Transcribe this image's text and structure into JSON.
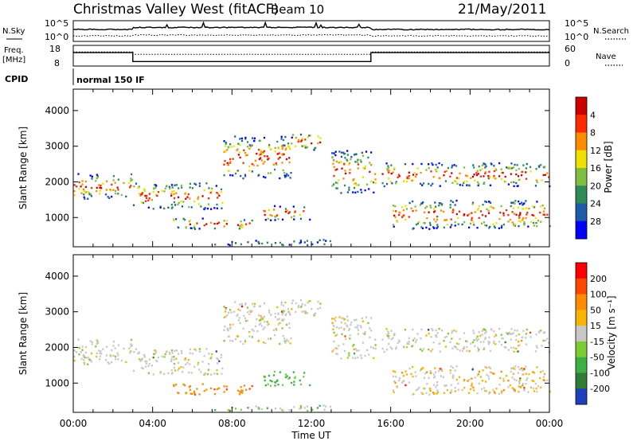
{
  "header": {
    "station": "Christmas Valley West (fitACF)",
    "beam": "Beam 10",
    "date": "21/May/2011"
  },
  "chart_data": [
    {
      "type": "line",
      "panel": "noise",
      "left_label": "N.Sky",
      "right_label": "N.Search",
      "left_ticks": [
        "10^5",
        "10^0"
      ],
      "right_ticks": [
        "10^5",
        "10^0"
      ],
      "note": "N.Sky solid, N.Search dotted (log scale)"
    },
    {
      "type": "line",
      "panel": "frequency",
      "left_label_lines": [
        "Freq.",
        "[MHz]"
      ],
      "left_ticks": [
        18,
        8
      ],
      "right_label": "Nave",
      "right_ticks": [
        60,
        0
      ],
      "freq_series": {
        "x": [
          0,
          3,
          3,
          15,
          15,
          24
        ],
        "y": [
          14.5,
          14.5,
          10.2,
          10.2,
          14.5,
          14.5
        ]
      },
      "nave_series": {
        "x": [
          0,
          3,
          3,
          15,
          15,
          24
        ],
        "y": [
          41,
          41,
          34,
          34,
          41,
          41
        ]
      }
    },
    {
      "type": "table",
      "panel": "cpid",
      "label": "CPID",
      "value": "normal 150 IF"
    },
    {
      "type": "heatmap",
      "panel": "power",
      "ylabel": "Slant Range [km]",
      "yticks": [
        1000,
        2000,
        3000,
        4000
      ],
      "ylim": [
        180,
        4600
      ],
      "colorbar_label": "Power [dB]",
      "colorbar_ticks": [
        4,
        8,
        12,
        16,
        20,
        24,
        28
      ],
      "colors": [
        "#0000ff",
        "#1e5aa8",
        "#2e8b57",
        "#7fbf3f",
        "#f0e000",
        "#ff8c00",
        "#ff2a00",
        "#cc0000"
      ]
    },
    {
      "type": "heatmap",
      "panel": "velocity",
      "ylabel": "Slant Range [km]",
      "yticks": [
        1000,
        2000,
        3000,
        4000
      ],
      "ylim": [
        180,
        4600
      ],
      "colorbar_label": "Velocity [m s⁻¹]",
      "colorbar_ticks": [
        200,
        100,
        50,
        15,
        -15,
        -50,
        -100,
        -200
      ],
      "colors": [
        "#1f3fbf",
        "#2e7d32",
        "#3cb043",
        "#7ccd34",
        "#c8c8c8",
        "#f7b500",
        "#ff8c00",
        "#ff4500",
        "#ff0000"
      ],
      "xlabel": "Time UT",
      "xticks": [
        "00:00",
        "04:00",
        "08:00",
        "12:00",
        "16:00",
        "20:00",
        "00:00"
      ]
    }
  ],
  "range_bands": [
    {
      "t0": 0,
      "t1": 3,
      "r0": 1550,
      "r1": 2250,
      "vel": 0
    },
    {
      "t0": 3,
      "t1": 7.5,
      "r0": 1250,
      "r1": 2000,
      "vel": 0
    },
    {
      "t0": 7.5,
      "t1": 11,
      "r0": 2100,
      "r1": 3300,
      "vel": 0
    },
    {
      "t0": 11,
      "t1": 12.5,
      "r0": 2900,
      "r1": 3400,
      "vel": 0
    },
    {
      "t0": 13,
      "t1": 15.2,
      "r0": 1700,
      "r1": 2900,
      "vel": 0
    },
    {
      "t0": 15.5,
      "t1": 24,
      "r0": 1900,
      "r1": 2550,
      "vel": 0
    },
    {
      "t0": 16,
      "t1": 24,
      "r0": 700,
      "r1": 1500,
      "vel": -15
    },
    {
      "t0": 5,
      "t1": 9,
      "r0": 700,
      "r1": 1000,
      "vel": -60
    },
    {
      "t0": 9.5,
      "t1": 12,
      "r0": 950,
      "r1": 1350,
      "vel": 40
    },
    {
      "t0": 7,
      "t1": 13,
      "r0": 250,
      "r1": 400,
      "vel": 15
    }
  ]
}
